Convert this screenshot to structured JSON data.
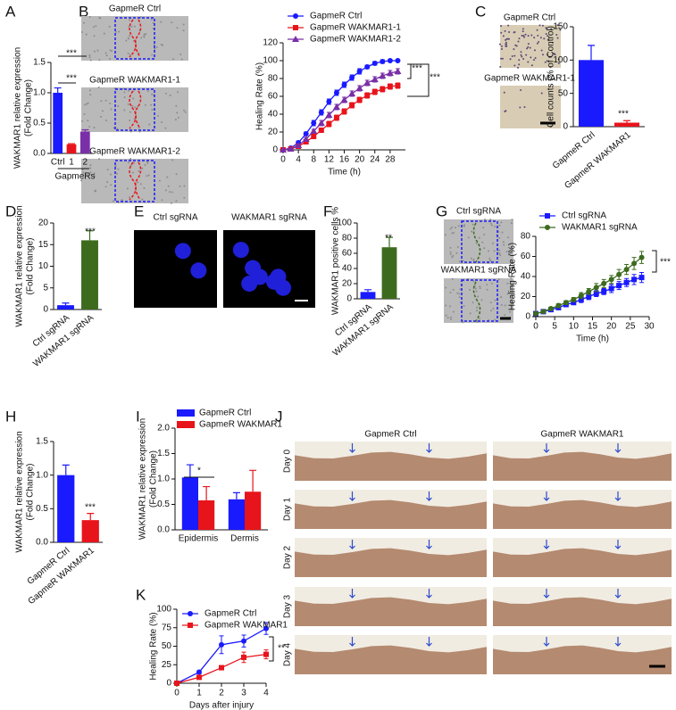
{
  "panels": [
    "A",
    "B",
    "C",
    "D",
    "E",
    "F",
    "G",
    "H",
    "I",
    "J",
    "K"
  ],
  "images": {
    "B": [
      "GapmeR Ctrl",
      "GapmeR WAKMAR1-1",
      "GapmeR WAKMAR1-2"
    ],
    "C": [
      "GapmeR Ctrl",
      "GapmeR WAKMAR1-1"
    ],
    "E": [
      "Ctrl sgRNA",
      "WAKMAR1 sgRNA"
    ],
    "G": [
      "Ctrl sgRNA",
      "WAKMAR1 sgRNA"
    ],
    "J": {
      "columns": [
        "GapmeR Ctrl",
        "GapmeR WAKMAR1"
      ],
      "rows": [
        "Day 0",
        "Day 1",
        "Day 2",
        "Day 3",
        "Day 4"
      ]
    }
  },
  "chart_data": [
    {
      "type": "bar",
      "ylabel": [
        "WAKMAR1 relative expression",
        "(Fold Change)"
      ],
      "xlabel": "GapmeRs",
      "categories": [
        "Ctrl",
        "1",
        "2"
      ],
      "values": [
        1.0,
        0.15,
        0.36
      ],
      "errors": [
        0.08,
        0.01,
        0.03
      ],
      "colors": [
        "#1a1aff",
        "#e8141b",
        "#7a2fa8"
      ],
      "ylim": [
        0,
        1.5
      ],
      "yticks": [
        {
          "value": 0,
          "label": "0.0"
        },
        {
          "value": 0.5,
          "label": "0.5"
        },
        {
          "value": 1,
          "label": "1.0"
        },
        {
          "value": 1.5,
          "label": "1.5"
        }
      ],
      "annotations": [
        "***",
        "***"
      ]
    },
    {
      "type": "line",
      "xlabel": "Time (h)",
      "ylabel": [
        "Healing Rate (%)"
      ],
      "x": [
        0,
        2,
        4,
        6,
        8,
        10,
        12,
        14,
        16,
        18,
        20,
        22,
        24,
        26,
        28,
        30
      ],
      "xlim": [
        0,
        32
      ],
      "xticks": [
        0,
        4,
        8,
        12,
        16,
        20,
        24,
        28
      ],
      "ylim": [
        0,
        120
      ],
      "yticks": [
        0,
        20,
        40,
        60,
        80,
        100,
        120
      ],
      "series": [
        {
          "name": "GapmeR Ctrl",
          "color": "#1a1aff",
          "marker": "circle",
          "values": [
            0,
            2,
            8,
            18,
            30,
            42,
            54,
            64,
            73,
            81,
            88,
            93,
            97,
            99,
            100,
            100
          ],
          "errors": [
            0,
            1,
            2,
            2,
            3,
            3,
            3,
            3,
            3,
            3,
            3,
            2,
            2,
            2,
            1,
            1
          ]
        },
        {
          "name": "GapmeR WAKMAR1-1",
          "color": "#e8141b",
          "marker": "square",
          "values": [
            0,
            1,
            4,
            9,
            15,
            22,
            29,
            36,
            43,
            50,
            56,
            61,
            65,
            68,
            71,
            72
          ],
          "errors": [
            0,
            1,
            1,
            2,
            2,
            2,
            3,
            3,
            3,
            3,
            3,
            3,
            3,
            3,
            3,
            3
          ]
        },
        {
          "name": "GapmeR WAKMAR1-2",
          "color": "#7a2fa8",
          "marker": "triangle",
          "values": [
            0,
            1,
            5,
            12,
            21,
            30,
            39,
            48,
            56,
            63,
            69,
            75,
            79,
            83,
            86,
            88
          ],
          "errors": [
            0,
            1,
            1,
            2,
            2,
            3,
            3,
            3,
            3,
            3,
            3,
            3,
            3,
            3,
            3,
            3
          ]
        }
      ],
      "annotations": [
        "***",
        "***"
      ]
    },
    {
      "type": "bar",
      "ylabel": [
        "Cell counts (% of Control)"
      ],
      "rotate_labels": true,
      "categories": [
        "GapmeR Ctrl",
        "GapmeR WAKMAR1"
      ],
      "values": [
        100,
        6
      ],
      "errors": [
        22,
        3
      ],
      "colors": [
        "#1a1aff",
        "#e8141b"
      ],
      "ylim": [
        0,
        150
      ],
      "yticks": [
        0,
        50,
        100,
        150
      ],
      "annotations": [
        "***"
      ]
    },
    {
      "type": "bar",
      "ylabel": [
        "WAKMAR1  relative expression",
        "(Fold Change)"
      ],
      "rotate_labels": true,
      "categories": [
        "Ctrl sgRNA",
        "WAKMAR1 sgRNA"
      ],
      "values": [
        1,
        16
      ],
      "errors": [
        0.5,
        2.2
      ],
      "colors": [
        "#1a1aff",
        "#3d6b1e"
      ],
      "ylim": [
        0,
        20
      ],
      "yticks": [
        0,
        5,
        10,
        15,
        20
      ],
      "annotations": [
        "***"
      ]
    },
    {
      "type": "bar",
      "ylabel": [
        "WAKMAR1 positive cells %"
      ],
      "rotate_labels": true,
      "categories": [
        "Ctrl sgRNA",
        "WAKMAR1 sgRNA"
      ],
      "values": [
        9,
        68
      ],
      "errors": [
        3,
        13
      ],
      "colors": [
        "#1a1aff",
        "#3d6b1e"
      ],
      "ylim": [
        0,
        100
      ],
      "yticks": [
        0,
        20,
        40,
        60,
        80,
        100
      ],
      "annotations": [
        "**"
      ]
    },
    {
      "type": "line",
      "xlabel": "Time (h)",
      "ylabel": [
        "Healing Rate (%)"
      ],
      "x": [
        0,
        2,
        4,
        6,
        8,
        10,
        12,
        14,
        16,
        18,
        20,
        22,
        24,
        26,
        28
      ],
      "xlim": [
        0,
        30
      ],
      "xticks": [
        0,
        5,
        10,
        15,
        20,
        25,
        30
      ],
      "ylim": [
        0,
        80
      ],
      "yticks": [
        0,
        20,
        40,
        60,
        80
      ],
      "series": [
        {
          "name": "Ctrl sgRNA",
          "color": "#1a1aff",
          "marker": "square",
          "values": [
            3,
            5,
            7,
            9,
            12,
            14,
            17,
            20,
            23,
            25,
            28,
            31,
            34,
            37,
            39
          ],
          "errors": [
            1,
            1,
            1,
            2,
            2,
            2,
            3,
            3,
            3,
            3,
            4,
            4,
            4,
            5,
            5
          ]
        },
        {
          "name": "WAKMAR1 sgRNA",
          "color": "#3d6b1e",
          "marker": "circle",
          "values": [
            3,
            5,
            8,
            11,
            14,
            17,
            21,
            25,
            29,
            33,
            37,
            42,
            47,
            53,
            59
          ],
          "errors": [
            1,
            1,
            1,
            2,
            2,
            2,
            3,
            3,
            4,
            4,
            4,
            5,
            5,
            6,
            6
          ]
        }
      ],
      "annotations": [
        "***"
      ]
    },
    {
      "type": "bar",
      "ylabel": [
        "WAKMAR1 relative expression",
        "(Fold Change)"
      ],
      "rotate_labels": true,
      "categories": [
        "GapmeR Ctrl",
        "GapmeR WAKMAR1"
      ],
      "values": [
        1.0,
        0.33
      ],
      "errors": [
        0.15,
        0.1
      ],
      "colors": [
        "#1a1aff",
        "#e8141b"
      ],
      "ylim": [
        0,
        1.5
      ],
      "yticks": [
        {
          "value": 0,
          "label": "0.0"
        },
        {
          "value": 0.5,
          "label": "0.5"
        },
        {
          "value": 1,
          "label": "1.0"
        },
        {
          "value": 1.5,
          "label": "1.5"
        }
      ],
      "annotations": [
        "***"
      ]
    },
    {
      "type": "bar",
      "ylabel": [
        "WAKMAR1 relative expression",
        "(Fold Change)"
      ],
      "categories": [
        "Epidermis",
        "Dermis"
      ],
      "ylim": [
        0,
        2
      ],
      "yticks": [
        {
          "value": 0,
          "label": "0.0"
        },
        {
          "value": 0.5,
          "label": "0.5"
        },
        {
          "value": 1,
          "label": "1.0"
        },
        {
          "value": 1.5,
          "label": "1.5"
        },
        {
          "value": 2,
          "label": "2.0"
        }
      ],
      "series": [
        {
          "name": "GapmeR Ctrl",
          "color": "#1a1aff",
          "values": [
            1.03,
            0.6
          ],
          "errors": [
            0.25,
            0.13
          ]
        },
        {
          "name": "GapmeR WAKMAR1",
          "color": "#e8141b",
          "values": [
            0.58,
            0.75
          ],
          "errors": [
            0.27,
            0.42
          ]
        }
      ],
      "annotations": [
        "*"
      ]
    },
    {
      "type": "line",
      "xlabel": "Days after injury",
      "ylabel": [
        "Healing Rate (%)"
      ],
      "x": [
        0,
        1,
        2,
        3,
        4
      ],
      "xlim": [
        0,
        4
      ],
      "xticks": [
        0,
        1,
        2,
        3,
        4
      ],
      "ylim": [
        0,
        100
      ],
      "yticks": [
        0,
        25,
        50,
        75,
        100
      ],
      "series": [
        {
          "name": "GapmeR Ctrl",
          "color": "#1a1aff",
          "marker": "circle",
          "values": [
            0,
            15,
            52,
            57,
            74
          ],
          "errors": [
            0,
            2,
            12,
            8,
            8
          ]
        },
        {
          "name": "GapmeR WAKMAR1",
          "color": "#e8141b",
          "marker": "square",
          "values": [
            0,
            8,
            21,
            35,
            39
          ],
          "errors": [
            0,
            1,
            2,
            7,
            6
          ]
        }
      ],
      "annotations": [
        "**"
      ]
    }
  ]
}
